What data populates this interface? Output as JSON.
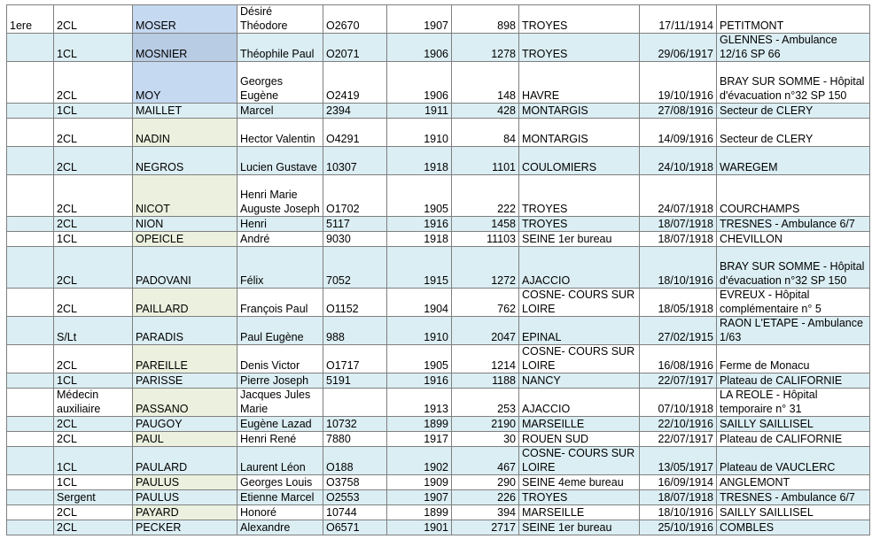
{
  "rows": [
    {
      "rank_col": "1ere",
      "grade": "2CL",
      "name": "MOSER",
      "first": "Désiré Théodore",
      "mle": "O2670",
      "classe": "1907",
      "num": "898",
      "recrut": "TROYES",
      "date": "17/11/1914",
      "lieu": "PETITMONT",
      "shade": "plain",
      "name_fill": "blue",
      "h": 32
    },
    {
      "rank_col": "",
      "grade": "1CL",
      "name": "MOSNIER",
      "first": "Théophile Paul",
      "mle": "O2071",
      "classe": "1906",
      "num": "1278",
      "recrut": "TROYES",
      "date": "29/06/1917",
      "lieu": "GLENNES - Ambulance 12/16 SP 66",
      "shade": "alt",
      "name_fill": "blue",
      "h": 32
    },
    {
      "rank_col": "",
      "grade": "2CL",
      "name": "MOY",
      "first": "Georges Eugène",
      "mle": "O2419",
      "classe": "1906",
      "num": "148",
      "recrut": "HAVRE",
      "date": "19/10/1916",
      "lieu": "BRAY SUR SOMME - Hôpital d'évacuation n°32 SP 150",
      "shade": "plain",
      "name_fill": "blue",
      "h": 47
    },
    {
      "rank_col": "",
      "grade": "1CL",
      "name": "MAILLET",
      "first": "Marcel",
      "mle": "2394",
      "classe": "1911",
      "num": "428",
      "recrut": "MONTARGIS",
      "date": "27/08/1916",
      "lieu": "Secteur de CLERY",
      "shade": "alt",
      "name_fill": "green",
      "h": 17
    },
    {
      "rank_col": "",
      "grade": "2CL",
      "name": "NADIN",
      "first": "Hector Valentin",
      "mle": "O4291",
      "classe": "1910",
      "num": "84",
      "recrut": "MONTARGIS",
      "date": "14/09/1916",
      "lieu": "Secteur de CLERY",
      "shade": "plain",
      "name_fill": "green",
      "h": 32
    },
    {
      "rank_col": "",
      "grade": "2CL",
      "name": "NEGROS",
      "first": "Lucien Gustave",
      "mle": "10307",
      "classe": "1918",
      "num": "1101",
      "recrut": "COULOMIERS",
      "date": "24/10/1918",
      "lieu": "WAREGEM",
      "shade": "alt",
      "name_fill": "green",
      "h": 32
    },
    {
      "rank_col": "",
      "grade": "2CL",
      "name": "NICOT",
      "first": "Henri Marie Auguste Joseph",
      "mle": "O1702",
      "classe": "1905",
      "num": "222",
      "recrut": "TROYES",
      "date": "24/07/1918",
      "lieu": "COURCHAMPS",
      "shade": "plain",
      "name_fill": "green",
      "h": 47
    },
    {
      "rank_col": "",
      "grade": "2CL",
      "name": "NION",
      "first": "Henri",
      "mle": "5117",
      "classe": "1916",
      "num": "1458",
      "recrut": "TROYES",
      "date": "18/07/1918",
      "lieu": "TRESNES - Ambulance 6/7",
      "shade": "alt",
      "name_fill": "green",
      "h": 17
    },
    {
      "rank_col": "",
      "grade": "1CL",
      "name": "OPEICLE",
      "first": "André",
      "mle": "9030",
      "classe": "1918",
      "num": "11103",
      "recrut": "SEINE 1er bureau",
      "date": "18/07/1918",
      "lieu": "CHEVILLON",
      "shade": "plain",
      "name_fill": "green",
      "h": 17
    },
    {
      "rank_col": "",
      "grade": "2CL",
      "name": "PADOVANI",
      "first": "Félix",
      "mle": "7052",
      "classe": "1915",
      "num": "1272",
      "recrut": "AJACCIO",
      "date": "18/10/1916",
      "lieu": "BRAY SUR SOMME - Hôpital d'évacuation n°32 SP 150",
      "shade": "alt",
      "name_fill": "green",
      "h": 47
    },
    {
      "rank_col": "",
      "grade": "2CL",
      "name": "PAILLARD",
      "first": "François Paul",
      "mle": "O1152",
      "classe": "1904",
      "num": "762",
      "recrut": "COSNE- COURS SUR LOIRE",
      "date": "18/05/1918",
      "lieu": "EVREUX - Hôpital complémentaire n° 5",
      "shade": "plain",
      "name_fill": "green",
      "h": 32
    },
    {
      "rank_col": "",
      "grade": "S/Lt",
      "name": "PARADIS",
      "first": "Paul Eugène",
      "mle": "988",
      "classe": "1910",
      "num": "2047",
      "recrut": "EPINAL",
      "date": "27/02/1915",
      "lieu": "RAON L'ETAPE - Ambulance 1/63",
      "shade": "alt",
      "name_fill": "green",
      "h": 32
    },
    {
      "rank_col": "",
      "grade": "2CL",
      "name": "PAREILLE",
      "first": "Denis Victor",
      "mle": "O1717",
      "classe": "1905",
      "num": "1214",
      "recrut": "COSNE- COURS SUR LOIRE",
      "date": "16/08/1916",
      "lieu": "Ferme de Monacu",
      "shade": "plain",
      "name_fill": "green",
      "h": 32
    },
    {
      "rank_col": "",
      "grade": "1CL",
      "name": "PARISSE",
      "first": "Pierre Joseph",
      "mle": "5191",
      "classe": "1916",
      "num": "1188",
      "recrut": "NANCY",
      "date": "22/07/1917",
      "lieu": "Plateau de CALIFORNIE",
      "shade": "alt",
      "name_fill": "green",
      "h": 17
    },
    {
      "rank_col": "",
      "grade": "Médecin auxiliaire",
      "name": "PASSANO",
      "first": "Jacques Jules Marie",
      "mle": "",
      "classe": "1913",
      "num": "253",
      "recrut": "AJACCIO",
      "date": "07/10/1918",
      "lieu": "LA REOLE - Hôpital temporaire n° 31",
      "shade": "plain",
      "name_fill": "green",
      "h": 32
    },
    {
      "rank_col": "",
      "grade": "2CL",
      "name": "PAUGOY",
      "first": "Eugène Lazad",
      "mle": "10732",
      "classe": "1899",
      "num": "2190",
      "recrut": "MARSEILLE",
      "date": "22/10/1916",
      "lieu": "SAILLY SAILLISEL",
      "shade": "alt",
      "name_fill": "green",
      "h": 17
    },
    {
      "rank_col": "",
      "grade": "2CL",
      "name": "PAUL",
      "first": "Henri René",
      "mle": "7880",
      "classe": "1917",
      "num": "30",
      "recrut": "ROUEN SUD",
      "date": "22/07/1917",
      "lieu": "Plateau de CALIFORNIE",
      "shade": "plain",
      "name_fill": "green",
      "h": 17
    },
    {
      "rank_col": "",
      "grade": "1CL",
      "name": "PAULARD",
      "first": "Laurent Léon",
      "mle": "O188",
      "classe": "1902",
      "num": "467",
      "recrut": "COSNE- COURS SUR LOIRE",
      "date": "13/05/1917",
      "lieu": "Plateau de VAUCLERC",
      "shade": "alt",
      "name_fill": "green",
      "h": 32
    },
    {
      "rank_col": "",
      "grade": "1CL",
      "name": "PAULUS",
      "first": "Georges Louis",
      "mle": "O3758",
      "classe": "1909",
      "num": "290",
      "recrut": "SEINE 4eme bureau",
      "date": "16/09/1914",
      "lieu": "ANGLEMONT",
      "shade": "plain",
      "name_fill": "green",
      "h": 17
    },
    {
      "rank_col": "",
      "grade": "Sergent",
      "name": "PAULUS",
      "first": "Etienne Marcel",
      "mle": "O2553",
      "classe": "1907",
      "num": "226",
      "recrut": "TROYES",
      "date": "18/07/1918",
      "lieu": "TRESNES - Ambulance 6/7",
      "shade": "alt",
      "name_fill": "green",
      "h": 17
    },
    {
      "rank_col": "",
      "grade": "2CL",
      "name": "PAYARD",
      "first": "Honoré",
      "mle": "10744",
      "classe": "1899",
      "num": "394",
      "recrut": "MARSEILLE",
      "date": "18/10/1916",
      "lieu": "SAILLY SAILLISEL",
      "shade": "plain",
      "name_fill": "green",
      "h": 17
    },
    {
      "rank_col": "",
      "grade": "2CL",
      "name": "PECKER",
      "first": "Alexandre",
      "mle": "O6571",
      "classe": "1901",
      "num": "2717",
      "recrut": "SEINE 1er bureau",
      "date": "25/10/1916",
      "lieu": "COMBLES",
      "shade": "alt",
      "name_fill": "green",
      "h": 17
    }
  ]
}
